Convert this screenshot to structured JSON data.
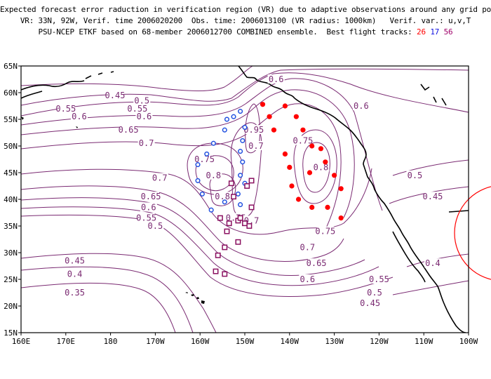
{
  "header": {
    "line1": "Expected forecast error raduction in verification region (VR) due to adaptive observations around any grid point.",
    "line2": "VR: 33N, 92W, Verif. time 2006020200  Obs. time: 2006013100 (VR radius: 1000km)   Verif. var.: u,v,T",
    "line3": "PSU-NCEP ETKF based on 68-member 2006012700 COMBINED ensemble.  Best flight tracks:",
    "track_a": "26",
    "track_b": "17",
    "track_c": "56"
  },
  "colors": {
    "contour": "#7a2a72",
    "coast": "#000000",
    "track_a": "#ff0000",
    "track_b": "#2050e0",
    "track_c": "#8a1060",
    "vr_circle": "#ff0000"
  },
  "axes": {
    "x_ticks": [
      "160E",
      "170E",
      "180",
      "170W",
      "160W",
      "150W",
      "140W",
      "130W",
      "120W",
      "110W",
      "100W"
    ],
    "y_ticks": [
      "15N",
      "20N",
      "25N",
      "30N",
      "35N",
      "40N",
      "45N",
      "50N",
      "55N",
      "60N",
      "65N"
    ]
  },
  "contour_labels": [
    {
      "text": "0.6",
      "lon": -143,
      "lat": 62.5
    },
    {
      "text": "0.45",
      "lon": -179,
      "lat": 59.5
    },
    {
      "text": "0.5",
      "lon": -173,
      "lat": 58.5
    },
    {
      "text": "0.55",
      "lon": -174,
      "lat": 57
    },
    {
      "text": "0.55",
      "lon": -190,
      "lat": 57
    },
    {
      "text": "0.6",
      "lon": -172.5,
      "lat": 55.5
    },
    {
      "text": "0.6",
      "lon": -187,
      "lat": 55.5
    },
    {
      "text": "0.65",
      "lon": -176,
      "lat": 53
    },
    {
      "text": "0.7",
      "lon": -172,
      "lat": 50.5
    },
    {
      "text": "0.75",
      "lon": -159,
      "lat": 47.5
    },
    {
      "text": "0.8",
      "lon": -157,
      "lat": 44.5
    },
    {
      "text": "0.95",
      "lon": -148,
      "lat": 53
    },
    {
      "text": "0.7",
      "lon": -147.5,
      "lat": 50
    },
    {
      "text": "0.75",
      "lon": -137,
      "lat": 51
    },
    {
      "text": "0.8",
      "lon": -133,
      "lat": 46
    },
    {
      "text": "0.6",
      "lon": -124,
      "lat": 57.5
    },
    {
      "text": "0.7",
      "lon": -169,
      "lat": 44
    },
    {
      "text": "0.8",
      "lon": -155,
      "lat": 40.5
    },
    {
      "text": "0.75",
      "lon": -152,
      "lat": 36.5
    },
    {
      "text": "0.7",
      "lon": -148.5,
      "lat": 36
    },
    {
      "text": "0.65",
      "lon": -171,
      "lat": 40.5
    },
    {
      "text": "0.6",
      "lon": -171.5,
      "lat": 38.5
    },
    {
      "text": "0.55",
      "lon": -172,
      "lat": 36.5
    },
    {
      "text": "0.5",
      "lon": -170,
      "lat": 35
    },
    {
      "text": "0.45",
      "lon": -188,
      "lat": 28.5
    },
    {
      "text": "0.4",
      "lon": -188,
      "lat": 26
    },
    {
      "text": "0.35",
      "lon": -188,
      "lat": 22.5
    },
    {
      "text": "0.75",
      "lon": -132,
      "lat": 34
    },
    {
      "text": "0.7",
      "lon": -136,
      "lat": 31
    },
    {
      "text": "0.65",
      "lon": -134,
      "lat": 28
    },
    {
      "text": "0.6",
      "lon": -136,
      "lat": 25
    },
    {
      "text": "0.55",
      "lon": -120,
      "lat": 25
    },
    {
      "text": "0.5",
      "lon": -121,
      "lat": 22.5
    },
    {
      "text": "0.45",
      "lon": -122,
      "lat": 20.5
    },
    {
      "text": "0.5",
      "lon": -112,
      "lat": 44.5
    },
    {
      "text": "0.45",
      "lon": -108,
      "lat": 40.5
    },
    {
      "text": "0.4",
      "lon": -108,
      "lat": 28
    }
  ],
  "tracks": {
    "a": [
      [
        -146,
        57.8
      ],
      [
        -144.5,
        55.5
      ],
      [
        -143.5,
        53
      ],
      [
        -141,
        57.5
      ],
      [
        -138.5,
        55.5
      ],
      [
        -137,
        53
      ],
      [
        -141,
        48.5
      ],
      [
        -140,
        46
      ],
      [
        -139.5,
        42.5
      ],
      [
        -138,
        40
      ],
      [
        -135.5,
        45
      ],
      [
        -135,
        50
      ],
      [
        -133,
        49.5
      ],
      [
        -132,
        47
      ],
      [
        -130,
        44.5
      ],
      [
        -128.5,
        42
      ],
      [
        -131.5,
        38.5
      ],
      [
        -135,
        38.5
      ],
      [
        -128.5,
        36.5
      ]
    ],
    "b": [
      [
        -152.5,
        55.5
      ],
      [
        -151,
        56.5
      ],
      [
        -150,
        53.5
      ],
      [
        -150.5,
        51
      ],
      [
        -151,
        49
      ],
      [
        -150.5,
        47
      ],
      [
        -151,
        44.5
      ],
      [
        -150,
        43
      ],
      [
        -151.5,
        41
      ],
      [
        -151,
        39
      ],
      [
        -154.5,
        39.5
      ],
      [
        -157.5,
        38
      ],
      [
        -159.5,
        41
      ],
      [
        -160.5,
        43.5
      ],
      [
        -160.5,
        46.5
      ],
      [
        -158.5,
        48.5
      ],
      [
        -157,
        50.5
      ],
      [
        -154.5,
        53
      ],
      [
        -154,
        55
      ]
    ],
    "c": [
      [
        -148.5,
        43.5
      ],
      [
        -149.5,
        42.5
      ],
      [
        -153,
        43
      ],
      [
        -152.5,
        40.5
      ],
      [
        -148.5,
        38.5
      ],
      [
        -151.5,
        36
      ],
      [
        -154,
        34
      ],
      [
        -154.5,
        31
      ],
      [
        -156,
        29.5
      ],
      [
        -156.5,
        26.5
      ],
      [
        -154.5,
        26
      ],
      [
        -151.5,
        32
      ],
      [
        -153.5,
        35.5
      ],
      [
        -155.5,
        36.5
      ],
      [
        -151,
        36.5
      ],
      [
        -150,
        35.5
      ],
      [
        -149,
        35
      ]
    ]
  }
}
